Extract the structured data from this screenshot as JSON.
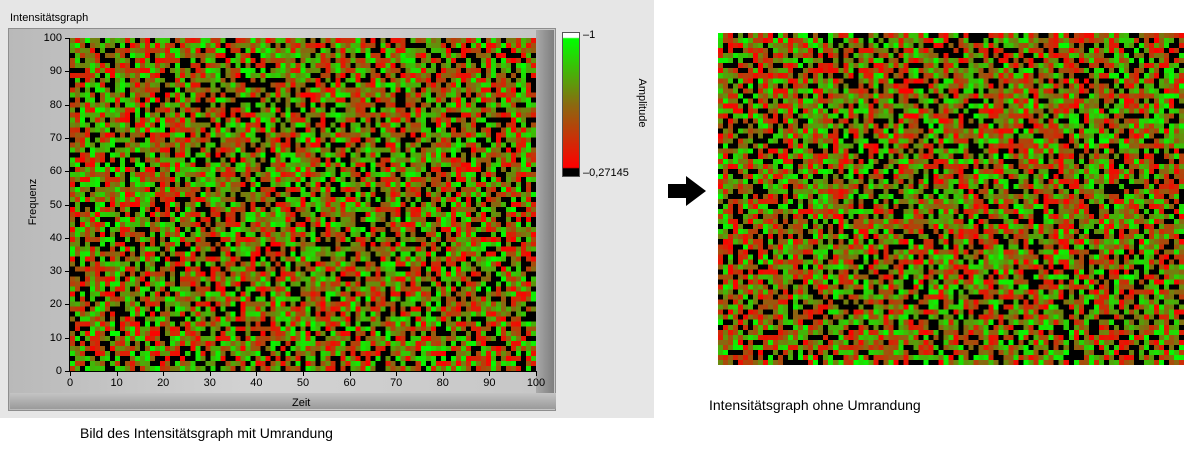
{
  "graph_title": "Intensitätsgraph",
  "colors": {
    "panel_bg": "#e6e6e6",
    "frame": "#b9b9b9",
    "scale_top": "#ffffff",
    "scale_high": "#00ff00",
    "scale_mid": "#8a6a10",
    "scale_low": "#ff0000",
    "scale_bottom": "#000000"
  },
  "chart_data": [
    {
      "type": "heatmap",
      "title": "",
      "xlabel": "Zeit",
      "ylabel": "Frequenz",
      "xlim": [
        0,
        100
      ],
      "ylim": [
        0,
        100
      ],
      "x_ticks": [
        "0",
        "10",
        "20",
        "30",
        "40",
        "50",
        "60",
        "70",
        "80",
        "90",
        "100"
      ],
      "y_ticks": [
        "0",
        "10",
        "20",
        "30",
        "40",
        "50",
        "60",
        "70",
        "80",
        "90",
        "100"
      ],
      "color_scale": {
        "label": "Amplitude",
        "max_label": "1",
        "min_label": "0,27145",
        "max": 1,
        "min": 0.27145
      },
      "grid": false,
      "values": "random noise (~100×100 cells), amplitudes ranging 0.27145 – 1"
    },
    {
      "type": "heatmap",
      "title": "",
      "xlabel": "",
      "ylabel": "",
      "grid": false,
      "values": "same random noise image shown without axes/border"
    }
  ],
  "captions": {
    "left": "Bild des Intensitätsgraph mit Umrandung",
    "right": "Intensitätsgraph ohne Umrandung"
  },
  "arrow_icon": "right-arrow-icon"
}
